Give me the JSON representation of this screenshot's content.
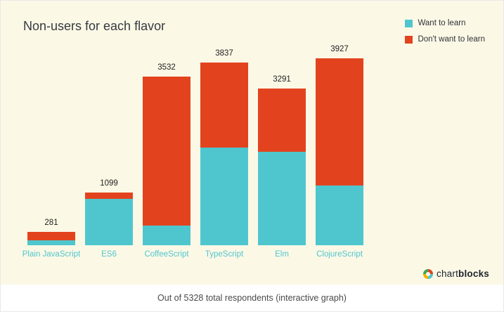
{
  "header": {
    "title": "Non-users for each flavor"
  },
  "legend": {
    "items": [
      {
        "label": "Want to learn",
        "color": "#4fc6ce",
        "icon": "teal-square-swatch"
      },
      {
        "label": "Don't want to learn",
        "color": "#e2431e",
        "icon": "red-square-swatch"
      }
    ]
  },
  "chart_data": {
    "type": "bar",
    "stacked": true,
    "title": "Non-users for each flavor",
    "categories": [
      "Plain JavaScript",
      "ES6",
      "CoffeeScript",
      "TypeScript",
      "Elm",
      "ClojureScript"
    ],
    "totals": [
      281,
      1099,
      3532,
      3837,
      3291,
      3927
    ],
    "series": [
      {
        "name": "Want to learn",
        "color": "#4fc6ce",
        "values": [
          100,
          980,
          420,
          2050,
          1960,
          1250
        ]
      },
      {
        "name": "Don't want to learn",
        "color": "#e2431e",
        "values": [
          181,
          119,
          3112,
          1787,
          1331,
          2677
        ]
      }
    ],
    "ylim": [
      0,
      4200
    ],
    "grid": false,
    "legend_position": "top-right",
    "background_color": "#fcf8e6"
  },
  "branding": {
    "name_regular": "chart",
    "name_bold": "blocks"
  },
  "footer": {
    "caption": "Out of 5328 total respondents (interactive graph)"
  }
}
